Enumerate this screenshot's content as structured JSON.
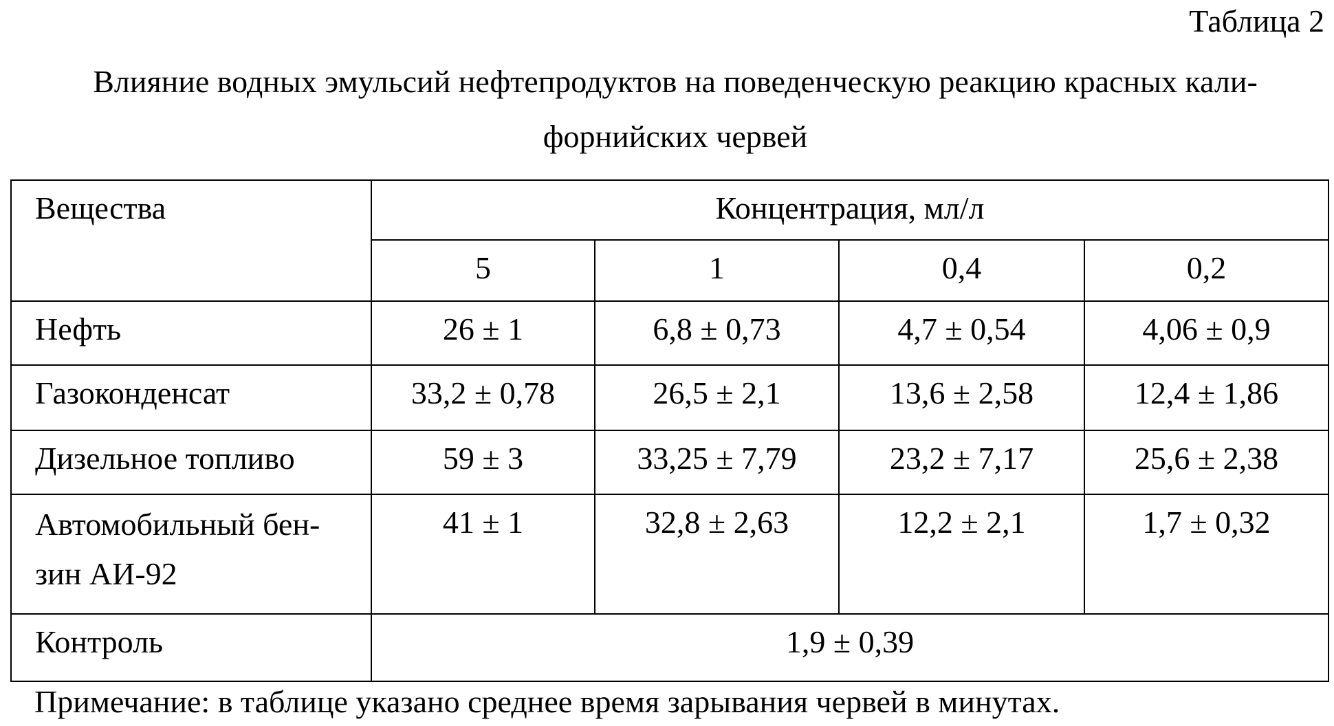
{
  "label": "Таблица 2",
  "title_lines": [
    "Влияние водных эмульсий нефтепродуктов на поведенческую реакцию красных кали-",
    "форнийских червей"
  ],
  "table": {
    "header": {
      "substance": "Вещества",
      "concentration": "Концентрация, мл/л",
      "levels": [
        "5",
        "1",
        "0,4",
        "0,2"
      ]
    },
    "rows": [
      {
        "name": [
          "Нефть"
        ],
        "cells": [
          "26 ± 1",
          "6,8 ± 0,73",
          "4,7 ± 0,54",
          "4,06 ± 0,9"
        ]
      },
      {
        "name": [
          "Газоконденсат"
        ],
        "cells": [
          "33,2 ± 0,78",
          "26,5 ± 2,1",
          "13,6 ± 2,58",
          "12,4 ± 1,86"
        ]
      },
      {
        "name": [
          "Дизельное топливо"
        ],
        "cells": [
          "59 ± 3",
          "33,25 ± 7,79",
          "23,2 ± 7,17",
          "25,6 ± 2,38"
        ]
      },
      {
        "name": [
          "Автомобильный бен-",
          "зин АИ-92"
        ],
        "cells": [
          "41 ± 1",
          "32,8 ± 2,63",
          "12,2 ± 2,1",
          "1,7 ± 0,32"
        ]
      }
    ],
    "control": {
      "name": "Контроль",
      "value": "1,9 ± 0,39"
    }
  },
  "note": "Примечание: в таблице указано среднее время зарывания червей в минутах."
}
